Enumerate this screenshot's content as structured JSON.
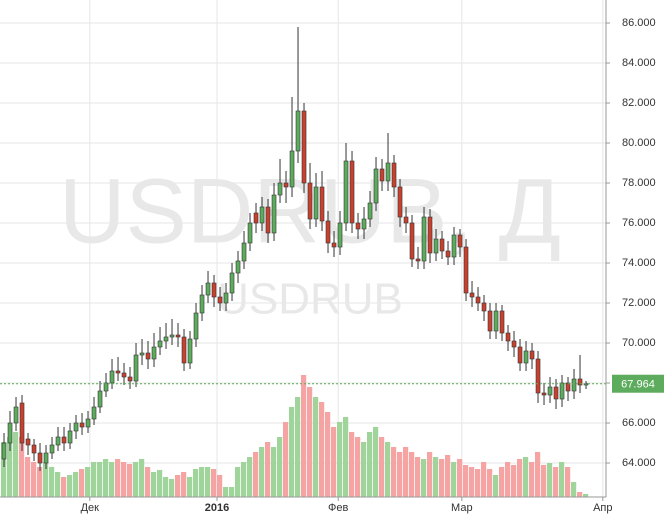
{
  "chart_data": {
    "type": "candlestick",
    "watermark": "USDRUB, Д",
    "watermark_sub": "USDRUB",
    "x": [
      0,
      1,
      2,
      3,
      4,
      5,
      6,
      7,
      8,
      9,
      10,
      11,
      12,
      13,
      14,
      15,
      16,
      17,
      18,
      19,
      20,
      21,
      22,
      23,
      24,
      25,
      26,
      27,
      28,
      29,
      30,
      31,
      32,
      33,
      34,
      35,
      36,
      37,
      38,
      39,
      40,
      41,
      42,
      43,
      44,
      45,
      46,
      47,
      48,
      49,
      50,
      51,
      52,
      53,
      54,
      55,
      56,
      57,
      58,
      59,
      60,
      61,
      62,
      63,
      64,
      65,
      66,
      67,
      68,
      69,
      70,
      71,
      72,
      73,
      74,
      75,
      76,
      77,
      78,
      79,
      80,
      81,
      82,
      83,
      84,
      85,
      86,
      87,
      88,
      89,
      90,
      91,
      92,
      93,
      94,
      95,
      96,
      97
    ],
    "open": [
      64.2,
      65.0,
      66.0,
      67.0,
      65.2,
      64.9,
      64.5,
      64.0,
      64.5,
      64.9,
      65.3,
      65.0,
      65.6,
      66.0,
      65.8,
      66.2,
      66.8,
      67.6,
      68.0,
      68.6,
      68.5,
      68.3,
      68.1,
      69.4,
      69.5,
      69.2,
      69.8,
      70.1,
      70.3,
      70.4,
      70.3,
      69.0,
      70.2,
      71.5,
      72.4,
      73.0,
      72.3,
      72.0,
      72.5,
      73.5,
      74.1,
      75.0,
      76.5,
      76.0,
      76.8,
      75.5,
      77.4,
      78.0,
      77.8,
      79.6,
      81.6,
      78.0,
      76.2,
      77.8,
      76.1,
      75.0,
      74.8,
      76.0,
      79.1,
      76.0,
      75.7,
      76.2,
      77.0,
      78.7,
      78.1,
      79.0,
      77.8,
      76.3,
      76.0,
      74.2,
      74.1,
      76.3,
      74.5,
      75.2,
      74.6,
      74.3,
      75.4,
      74.8,
      72.5,
      72.3,
      72.0,
      71.6,
      70.6,
      71.6,
      70.5,
      70.1,
      69.8,
      69.0,
      69.6,
      69.2,
      67.5,
      67.4,
      67.8,
      67.2,
      68.0,
      67.6,
      68.2,
      67.9
    ],
    "high": [
      65.5,
      66.6,
      67.3,
      67.4,
      65.5,
      65.2,
      65.0,
      64.9,
      65.3,
      65.8,
      65.8,
      66.0,
      66.4,
      66.5,
      66.6,
      67.3,
      68.1,
      68.5,
      69.2,
      69.3,
      69.0,
      68.8,
      70.0,
      70.2,
      70.1,
      70.5,
      70.8,
      71.0,
      71.2,
      71.0,
      70.7,
      70.6,
      72.0,
      72.9,
      73.6,
      73.4,
      72.8,
      73.0,
      74.0,
      74.6,
      75.6,
      76.5,
      77.0,
      77.3,
      77.2,
      78.0,
      79.2,
      78.6,
      82.3,
      85.8,
      82.0,
      79.0,
      78.5,
      78.6,
      76.6,
      75.6,
      76.6,
      80.0,
      79.6,
      76.5,
      76.8,
      77.6,
      79.3,
      79.2,
      80.5,
      79.4,
      78.2,
      76.8,
      76.4,
      74.8,
      76.8,
      76.7,
      75.7,
      75.6,
      75.1,
      75.8,
      75.7,
      75.2,
      73.1,
      72.8,
      72.4,
      72.0,
      72.0,
      71.9,
      70.9,
      70.6,
      70.2,
      70.1,
      70.0,
      69.6,
      68.0,
      68.3,
      68.2,
      68.4,
      68.3,
      68.7,
      69.4,
      68.1
    ],
    "low": [
      63.8,
      64.6,
      65.6,
      64.6,
      64.4,
      64.1,
      63.6,
      63.7,
      64.2,
      64.6,
      64.6,
      64.7,
      65.2,
      65.4,
      65.5,
      65.9,
      66.5,
      67.3,
      67.7,
      68.1,
      67.9,
      67.7,
      67.8,
      68.9,
      68.7,
      68.8,
      69.4,
      69.7,
      69.9,
      69.8,
      68.6,
      68.7,
      69.8,
      71.1,
      72.0,
      71.8,
      71.6,
      71.6,
      72.1,
      73.0,
      73.7,
      74.6,
      75.5,
      75.6,
      75.0,
      75.1,
      77.0,
      77.0,
      77.3,
      79.0,
      77.5,
      75.7,
      75.8,
      75.6,
      74.5,
      74.3,
      74.4,
      75.6,
      75.5,
      75.2,
      75.2,
      75.8,
      76.6,
      77.6,
      77.6,
      77.3,
      75.8,
      75.5,
      73.8,
      73.7,
      73.7,
      74.0,
      74.1,
      74.2,
      73.9,
      73.9,
      74.3,
      72.1,
      71.8,
      71.6,
      71.1,
      70.2,
      70.2,
      70.1,
      69.6,
      69.3,
      68.6,
      68.6,
      68.7,
      67.0,
      66.9,
      67.0,
      66.7,
      66.8,
      67.1,
      67.2,
      67.5,
      67.7
    ],
    "close": [
      65.0,
      66.0,
      66.8,
      65.0,
      64.9,
      64.5,
      64.0,
      64.5,
      64.9,
      65.3,
      65.0,
      65.6,
      66.0,
      65.8,
      66.2,
      66.8,
      67.6,
      68.0,
      68.6,
      68.5,
      68.3,
      68.1,
      69.4,
      69.5,
      69.2,
      69.8,
      70.1,
      70.3,
      70.4,
      70.3,
      69.0,
      70.2,
      71.5,
      72.4,
      73.0,
      72.3,
      72.0,
      72.5,
      73.5,
      74.1,
      75.0,
      76.0,
      76.0,
      76.8,
      75.5,
      77.4,
      78.0,
      77.8,
      79.6,
      81.6,
      78.0,
      76.2,
      77.8,
      76.1,
      75.0,
      74.8,
      76.0,
      79.1,
      76.0,
      75.7,
      76.2,
      77.0,
      78.7,
      78.1,
      79.0,
      77.8,
      76.3,
      76.0,
      74.2,
      74.1,
      76.3,
      74.5,
      75.2,
      74.6,
      74.3,
      75.4,
      74.8,
      72.5,
      72.3,
      72.0,
      71.6,
      70.6,
      71.6,
      70.5,
      70.1,
      69.8,
      69.0,
      69.6,
      69.2,
      67.5,
      67.4,
      67.8,
      67.2,
      68.0,
      67.6,
      68.2,
      67.9,
      67.964
    ],
    "volume": [
      55,
      60,
      65,
      60,
      40,
      35,
      30,
      35,
      30,
      25,
      20,
      22,
      25,
      28,
      30,
      35,
      35,
      38,
      35,
      38,
      35,
      33,
      35,
      38,
      30,
      25,
      27,
      20,
      18,
      22,
      25,
      20,
      28,
      30,
      30,
      28,
      22,
      10,
      10,
      30,
      35,
      40,
      45,
      50,
      55,
      50,
      60,
      75,
      90,
      100,
      122,
      110,
      100,
      95,
      85,
      70,
      75,
      80,
      65,
      60,
      55,
      65,
      70,
      60,
      55,
      50,
      45,
      50,
      45,
      40,
      38,
      45,
      40,
      38,
      42,
      35,
      38,
      32,
      30,
      28,
      35,
      28,
      22,
      30,
      35,
      32,
      38,
      40,
      35,
      45,
      32,
      34,
      30,
      35,
      30,
      15,
      5,
      3
    ],
    "up_color": "#5dab5d",
    "down_color": "#c8412f",
    "up_volume_color": "#9fd49b",
    "down_volume_color": "#f5a3a3",
    "ylim": [
      62.3,
      87.15
    ],
    "yticks": [
      {
        "value": 64,
        "label": "64.000"
      },
      {
        "value": 66,
        "label": "66.000"
      },
      {
        "value": 68,
        "label": "68.000"
      },
      {
        "value": 70,
        "label": "70.000"
      },
      {
        "value": 72,
        "label": "72.000"
      },
      {
        "value": 74,
        "label": "74.000"
      },
      {
        "value": 76,
        "label": "76.000"
      },
      {
        "value": 78,
        "label": "78.000"
      },
      {
        "value": 80,
        "label": "80.000"
      },
      {
        "value": 82,
        "label": "82.000"
      },
      {
        "value": 84,
        "label": "84.000"
      },
      {
        "value": 86,
        "label": "86.000"
      }
    ],
    "xlim": [
      -0.67,
      100.33
    ],
    "xticks": [
      {
        "value": 14.3,
        "label": "Дек"
      },
      {
        "value": 35.5,
        "label": "2016"
      },
      {
        "value": 55.7,
        "label": "Фев"
      },
      {
        "value": 76.3,
        "label": "Мар"
      },
      {
        "value": 99.8,
        "label": "Апр"
      }
    ],
    "grid": true
  }
}
